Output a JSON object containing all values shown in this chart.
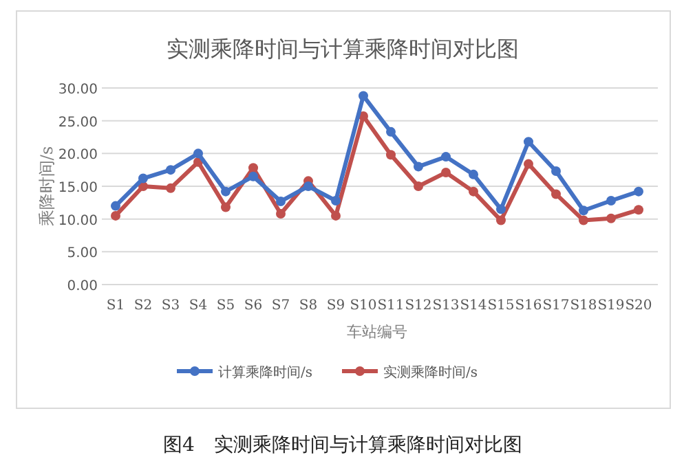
{
  "chart_data": {
    "type": "line",
    "title": "实测乘降时间与计算乘降时间对比图",
    "xlabel": "车站编号",
    "ylabel": "乘降时间/s",
    "categories": [
      "S1",
      "S2",
      "S3",
      "S4",
      "S5",
      "S6",
      "S7",
      "S8",
      "S9",
      "S10",
      "S11",
      "S12",
      "S13",
      "S14",
      "S15",
      "S16",
      "S17",
      "S18",
      "S19",
      "S20"
    ],
    "series": [
      {
        "name": "计算乘降时间/s",
        "color": "#4472c4",
        "values": [
          12,
          16.2,
          17.5,
          20,
          14.2,
          16.5,
          12.7,
          15,
          12.8,
          28.8,
          23.3,
          18,
          19.5,
          16.8,
          11.5,
          21.8,
          17.3,
          11.3,
          12.8,
          14.2
        ]
      },
      {
        "name": "实测乘降时间/s",
        "color": "#c0504d",
        "values": [
          10.5,
          15,
          14.7,
          18.7,
          11.8,
          17.8,
          10.8,
          15.8,
          10.5,
          25.7,
          19.8,
          15,
          17.1,
          14.2,
          9.8,
          18.4,
          13.8,
          9.8,
          10.1,
          11.4
        ]
      }
    ],
    "ylim": [
      0,
      30
    ],
    "yticks": [
      {
        "value": 0,
        "label": "0.00"
      },
      {
        "value": 5,
        "label": "5.00"
      },
      {
        "value": 10,
        "label": "10.00"
      },
      {
        "value": 15,
        "label": "15.00"
      },
      {
        "value": 20,
        "label": "20.00"
      },
      {
        "value": 25,
        "label": "25.00"
      },
      {
        "value": 30,
        "label": "30.00"
      }
    ],
    "grid": "y",
    "legend": "bottom",
    "marker": "circle",
    "annotations": [
      "图4　实测乘降时间与计算乘降时间对比图"
    ]
  }
}
